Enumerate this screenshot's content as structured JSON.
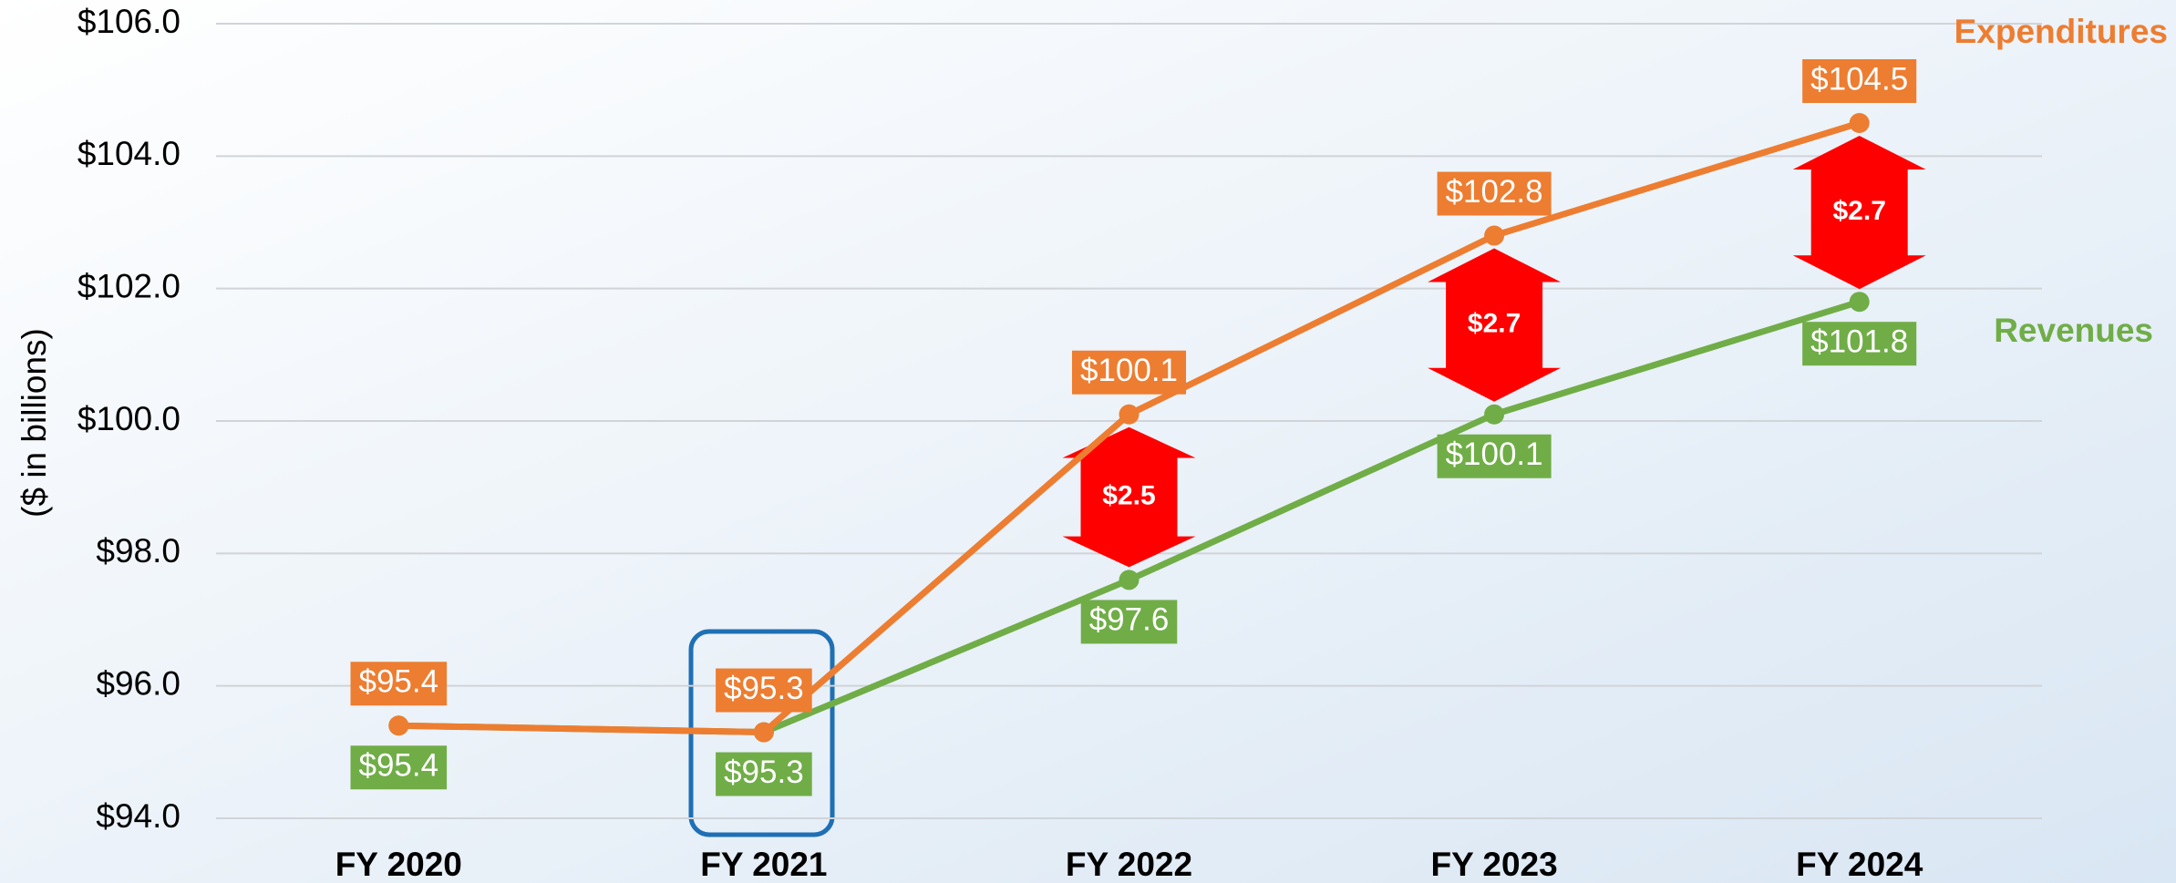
{
  "chart_data": {
    "type": "line",
    "y_label": "($ in billions)",
    "categories": [
      "FY 2020",
      "FY 2021",
      "FY 2022",
      "FY 2023",
      "FY 2024"
    ],
    "series": [
      {
        "name": "Expenditures",
        "color": "#ED7D31",
        "values": [
          95.4,
          95.3,
          100.1,
          102.8,
          104.5
        ],
        "value_labels": [
          "$95.4",
          "$95.3",
          "$100.1",
          "$102.8",
          "$104.5"
        ]
      },
      {
        "name": "Revenues",
        "color": "#70AD47",
        "values": [
          95.4,
          95.3,
          97.6,
          100.1,
          101.8
        ],
        "value_labels": [
          "$95.4",
          "$95.3",
          "$97.6",
          "$100.1",
          "$101.8"
        ]
      }
    ],
    "differences": {
      "color": "#FF0000",
      "values": [
        null,
        null,
        2.5,
        2.7,
        2.7
      ],
      "value_labels": [
        null,
        null,
        "$2.5",
        "$2.7",
        "$2.7"
      ]
    },
    "ylim": [
      94,
      106
    ],
    "yticks": [
      {
        "value": 94,
        "label": "$94.0"
      },
      {
        "value": 96,
        "label": "$96.0"
      },
      {
        "value": 98,
        "label": "$98.0"
      },
      {
        "value": 100,
        "label": "$100.0"
      },
      {
        "value": 102,
        "label": "$102.0"
      },
      {
        "value": 104,
        "label": "$104.0"
      },
      {
        "value": 106,
        "label": "$106.0"
      }
    ],
    "grid": true
  }
}
